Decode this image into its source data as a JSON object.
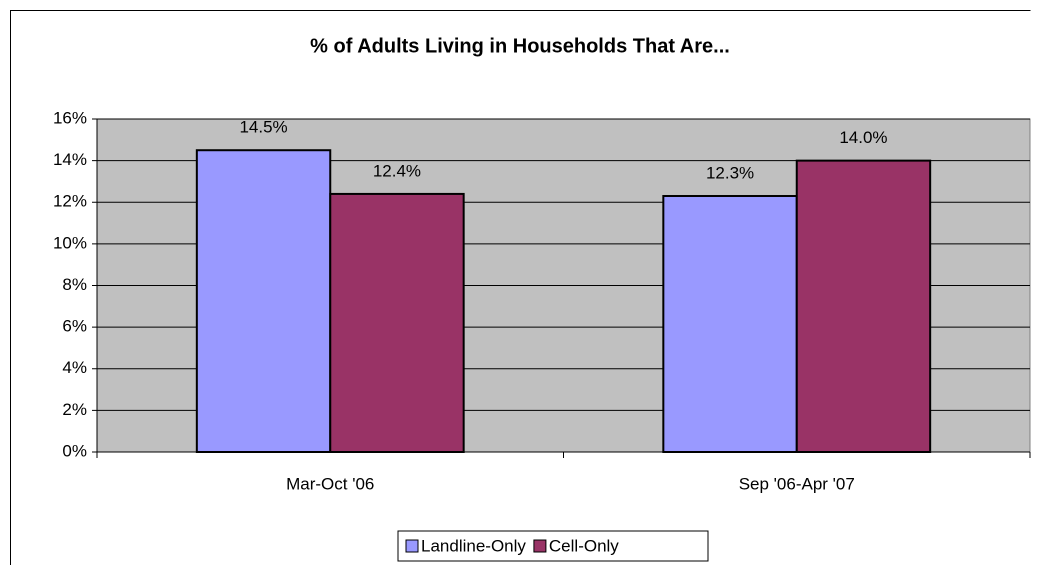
{
  "chart_data": {
    "type": "bar",
    "title": "% of Adults Living in Households That Are...",
    "categories": [
      "Mar-Oct '06",
      "Sep '06-Apr '07"
    ],
    "series": [
      {
        "name": "Landline-Only",
        "color": "#9999ff",
        "values": [
          14.5,
          12.3
        ],
        "value_labels": [
          "14.5%",
          "12.3%"
        ]
      },
      {
        "name": "Cell-Only",
        "color": "#993366",
        "values": [
          12.4,
          14.0
        ],
        "value_labels": [
          "12.4%",
          "14.0%"
        ]
      }
    ],
    "ylim": [
      0,
      16
    ],
    "yticks": [
      {
        "value": 0,
        "label": "0%"
      },
      {
        "value": 2,
        "label": "2%"
      },
      {
        "value": 4,
        "label": "4%"
      },
      {
        "value": 6,
        "label": "6%"
      },
      {
        "value": 8,
        "label": "8%"
      },
      {
        "value": 10,
        "label": "10%"
      },
      {
        "value": 12,
        "label": "12%"
      },
      {
        "value": 14,
        "label": "14%"
      },
      {
        "value": 16,
        "label": "16%"
      }
    ],
    "grid": true,
    "legend": "bottom"
  }
}
